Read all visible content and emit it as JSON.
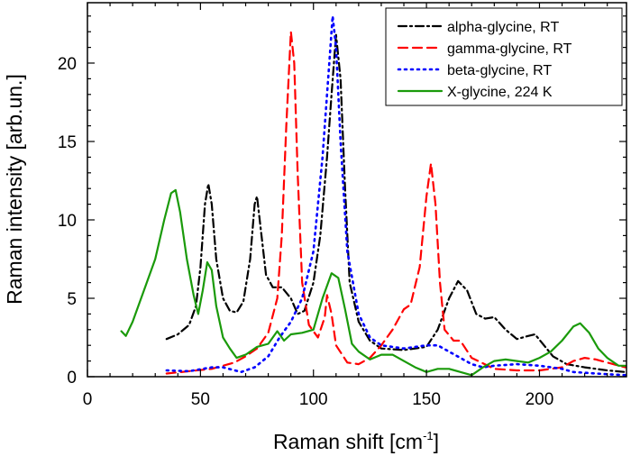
{
  "chart_data": {
    "type": "line",
    "title": "",
    "xlabel": "Raman shift [cm",
    "xlabel_sup": "-1",
    "xlabel_close": "]",
    "ylabel": "Raman intensity [arb.un.]",
    "xlim": [
      0,
      238.5
    ],
    "ylim": [
      0,
      23.85
    ],
    "xticks": [
      0,
      50,
      100,
      150,
      200
    ],
    "yticks": [
      0,
      5,
      10,
      15,
      20
    ],
    "grid": false,
    "legend_position": "top-right",
    "series": [
      {
        "name": "alpha-glycine, RT",
        "color": "#000000",
        "style": "dash-dot",
        "points": [
          [
            35,
            2.4
          ],
          [
            40,
            2.7
          ],
          [
            45,
            3.3
          ],
          [
            48,
            4.5
          ],
          [
            50,
            7
          ],
          [
            52,
            11
          ],
          [
            53.5,
            12.3
          ],
          [
            55,
            11
          ],
          [
            57,
            7.5
          ],
          [
            60,
            5
          ],
          [
            63,
            4.2
          ],
          [
            66,
            4.1
          ],
          [
            69,
            4.8
          ],
          [
            72,
            7.5
          ],
          [
            74,
            11
          ],
          [
            75,
            11.5
          ],
          [
            77,
            9
          ],
          [
            79,
            6.5
          ],
          [
            82,
            5.7
          ],
          [
            86,
            5.7
          ],
          [
            90,
            5
          ],
          [
            93,
            4
          ],
          [
            96,
            4.2
          ],
          [
            100,
            6
          ],
          [
            103,
            9
          ],
          [
            106,
            14
          ],
          [
            108,
            18
          ],
          [
            110,
            21.8
          ],
          [
            112,
            19
          ],
          [
            114,
            12
          ],
          [
            116,
            6
          ],
          [
            120,
            3.5
          ],
          [
            125,
            2.3
          ],
          [
            130,
            1.8
          ],
          [
            140,
            1.7
          ],
          [
            150,
            1.9
          ],
          [
            155,
            3
          ],
          [
            160,
            5
          ],
          [
            164,
            6.1
          ],
          [
            168,
            5.5
          ],
          [
            172,
            4
          ],
          [
            176,
            3.7
          ],
          [
            180,
            3.8
          ],
          [
            185,
            3
          ],
          [
            190,
            2.4
          ],
          [
            195,
            2.6
          ],
          [
            198,
            2.7
          ],
          [
            202,
            2
          ],
          [
            206,
            1.3
          ],
          [
            212,
            0.8
          ],
          [
            220,
            0.6
          ],
          [
            230,
            0.4
          ],
          [
            238,
            0.3
          ]
        ]
      },
      {
        "name": "gamma-glycine, RT",
        "color": "#ff0000",
        "style": "dashed",
        "points": [
          [
            35,
            0.2
          ],
          [
            45,
            0.35
          ],
          [
            55,
            0.5
          ],
          [
            60,
            0.7
          ],
          [
            65,
            0.9
          ],
          [
            70,
            1.3
          ],
          [
            75,
            1.8
          ],
          [
            80,
            2.8
          ],
          [
            84,
            5
          ],
          [
            86,
            9
          ],
          [
            88,
            16
          ],
          [
            90,
            22
          ],
          [
            91.5,
            20
          ],
          [
            93,
            13
          ],
          [
            95,
            6
          ],
          [
            98,
            3.3
          ],
          [
            102,
            2.5
          ],
          [
            105,
            3.8
          ],
          [
            106,
            5.2
          ],
          [
            108,
            4
          ],
          [
            110,
            2
          ],
          [
            115,
            0.9
          ],
          [
            120,
            0.8
          ],
          [
            125,
            1.2
          ],
          [
            130,
            2
          ],
          [
            135,
            3
          ],
          [
            140,
            4.3
          ],
          [
            143,
            4.6
          ],
          [
            147,
            7
          ],
          [
            150,
            11.5
          ],
          [
            152,
            13.6
          ],
          [
            154,
            11
          ],
          [
            156,
            6
          ],
          [
            158,
            3
          ],
          [
            162,
            2.3
          ],
          [
            165,
            2.3
          ],
          [
            170,
            1.2
          ],
          [
            180,
            0.5
          ],
          [
            190,
            0.4
          ],
          [
            200,
            0.4
          ],
          [
            210,
            0.6
          ],
          [
            215,
            1
          ],
          [
            220,
            1.2
          ],
          [
            225,
            1.1
          ],
          [
            230,
            0.9
          ],
          [
            238,
            0.6
          ]
        ]
      },
      {
        "name": "beta-glycine, RT",
        "color": "#0000ff",
        "style": "dotted",
        "points": [
          [
            35,
            0.4
          ],
          [
            45,
            0.35
          ],
          [
            55,
            0.6
          ],
          [
            60,
            0.6
          ],
          [
            68,
            0.3
          ],
          [
            74,
            0.6
          ],
          [
            80,
            1.3
          ],
          [
            85,
            2.5
          ],
          [
            90,
            3.5
          ],
          [
            95,
            5
          ],
          [
            100,
            8
          ],
          [
            104,
            14
          ],
          [
            107,
            20
          ],
          [
            108.5,
            23
          ],
          [
            110,
            21
          ],
          [
            112,
            15
          ],
          [
            115,
            8
          ],
          [
            120,
            4
          ],
          [
            125,
            2.5
          ],
          [
            130,
            2
          ],
          [
            140,
            1.8
          ],
          [
            150,
            2
          ],
          [
            155,
            2
          ],
          [
            160,
            1.6
          ],
          [
            165,
            1.2
          ],
          [
            170,
            0.8
          ],
          [
            175,
            0.6
          ],
          [
            180,
            0.7
          ],
          [
            190,
            0.8
          ],
          [
            200,
            0.7
          ],
          [
            210,
            0.5
          ],
          [
            215,
            0.3
          ],
          [
            225,
            0.2
          ],
          [
            238,
            0.1
          ]
        ]
      },
      {
        "name": "X-glycine, 224 K",
        "color": "#1a9a0a",
        "style": "solid",
        "points": [
          [
            15,
            2.9
          ],
          [
            17,
            2.6
          ],
          [
            20,
            3.5
          ],
          [
            25,
            5.5
          ],
          [
            30,
            7.5
          ],
          [
            34,
            10
          ],
          [
            37,
            11.7
          ],
          [
            39,
            11.9
          ],
          [
            41,
            10.5
          ],
          [
            44,
            7.5
          ],
          [
            47,
            5.2
          ],
          [
            49,
            4
          ],
          [
            51,
            5.5
          ],
          [
            53,
            7.3
          ],
          [
            55,
            6.8
          ],
          [
            57,
            4.5
          ],
          [
            60,
            2.5
          ],
          [
            63,
            1.8
          ],
          [
            66,
            1.2
          ],
          [
            70,
            1.4
          ],
          [
            75,
            1.9
          ],
          [
            80,
            2.1
          ],
          [
            84,
            2.9
          ],
          [
            87,
            2.3
          ],
          [
            90,
            2.7
          ],
          [
            95,
            2.8
          ],
          [
            100,
            3
          ],
          [
            104,
            5
          ],
          [
            108,
            6.6
          ],
          [
            111,
            6.3
          ],
          [
            114,
            4.3
          ],
          [
            117,
            2.1
          ],
          [
            120,
            1.6
          ],
          [
            125,
            1.1
          ],
          [
            130,
            1.4
          ],
          [
            135,
            1.4
          ],
          [
            140,
            1
          ],
          [
            145,
            0.6
          ],
          [
            150,
            0.3
          ],
          [
            155,
            0.5
          ],
          [
            160,
            0.5
          ],
          [
            165,
            0.3
          ],
          [
            170,
            0.1
          ],
          [
            175,
            0.6
          ],
          [
            180,
            1
          ],
          [
            185,
            1.1
          ],
          [
            190,
            1
          ],
          [
            195,
            0.9
          ],
          [
            200,
            1.2
          ],
          [
            205,
            1.6
          ],
          [
            210,
            2.3
          ],
          [
            215,
            3.2
          ],
          [
            218,
            3.4
          ],
          [
            222,
            2.8
          ],
          [
            226,
            1.8
          ],
          [
            230,
            1.2
          ],
          [
            235,
            0.7
          ],
          [
            238,
            0.7
          ]
        ]
      }
    ]
  }
}
